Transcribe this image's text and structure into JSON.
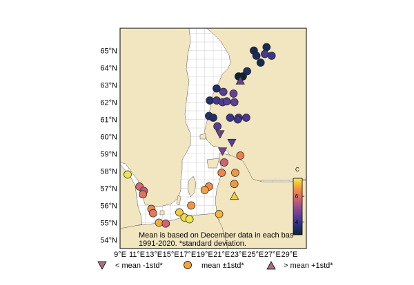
{
  "map": {
    "lat_labels": [
      "54°N",
      "55°N",
      "56°N",
      "57°N",
      "58°N",
      "59°N",
      "60°N",
      "61°N",
      "62°N",
      "63°N",
      "64°N",
      "65°N"
    ],
    "lon_labels": [
      "9°E",
      "11°E",
      "13°E",
      "15°E",
      "17°E",
      "19°E",
      "21°E",
      "23°E",
      "25°E",
      "27°E",
      "29°E"
    ],
    "lat_range": [
      53.5,
      66.3
    ],
    "lon_range": [
      9,
      31
    ],
    "land_color": "#f2e6c0",
    "sea_color": "#ffffff",
    "note_line1": "Mean is based on December data in each bas",
    "note_line2": "1991-2020. *standard deviation."
  },
  "colorbar": {
    "unit": "C",
    "ticks": [
      "6",
      "4"
    ],
    "tick_values": [
      6,
      4
    ],
    "range": [
      3,
      7.4
    ],
    "colormap": "thermal"
  },
  "legend": {
    "items": [
      {
        "label": "< mean -1std*",
        "marker": "triangle-down",
        "color": "#b06b86"
      },
      {
        "label": "mean ±1std*",
        "marker": "circle",
        "color": "#f5a33c"
      },
      {
        "label": "> mean +1std*",
        "marker": "triangle-up",
        "color": "#b06b86"
      }
    ]
  },
  "chart_data": {
    "type": "scatter",
    "title": "",
    "xlabel": "",
    "ylabel": "",
    "value_unit": "C",
    "points": [
      {
        "lon": 26.3,
        "lat": 65.2,
        "value": 3.3,
        "category": "mean"
      },
      {
        "lon": 24.8,
        "lat": 65.0,
        "value": 3.3,
        "category": "mean"
      },
      {
        "lon": 25.1,
        "lat": 64.7,
        "value": 3.4,
        "category": "mean"
      },
      {
        "lon": 26.1,
        "lat": 64.8,
        "value": 4.2,
        "category": "mean"
      },
      {
        "lon": 26.9,
        "lat": 64.7,
        "value": 4.0,
        "category": "mean"
      },
      {
        "lon": 25.6,
        "lat": 64.3,
        "value": 3.3,
        "category": "mean"
      },
      {
        "lon": 24.0,
        "lat": 63.8,
        "value": 3.5,
        "category": "mean"
      },
      {
        "lon": 23.0,
        "lat": 63.5,
        "value": 2.9,
        "category": "mean"
      },
      {
        "lon": 23.5,
        "lat": 63.5,
        "value": 3.0,
        "category": "mean"
      },
      {
        "lon": 23.2,
        "lat": 63.25,
        "value": 4.6,
        "category": "high"
      },
      {
        "lon": 20.4,
        "lat": 62.8,
        "value": 3.5,
        "category": "mean"
      },
      {
        "lon": 21.2,
        "lat": 62.6,
        "value": 4.4,
        "category": "mean"
      },
      {
        "lon": 22.4,
        "lat": 62.5,
        "value": 4.6,
        "category": "mean"
      },
      {
        "lon": 19.6,
        "lat": 62.1,
        "value": 3.6,
        "category": "mean"
      },
      {
        "lon": 20.4,
        "lat": 62.1,
        "value": 4.1,
        "category": "mean"
      },
      {
        "lon": 21.1,
        "lat": 62.0,
        "value": 4.3,
        "category": "mean"
      },
      {
        "lon": 21.6,
        "lat": 62.05,
        "value": 4.4,
        "category": "mean"
      },
      {
        "lon": 22.5,
        "lat": 62.0,
        "value": 4.5,
        "category": "mean"
      },
      {
        "lon": 19.5,
        "lat": 61.2,
        "value": 3.6,
        "category": "mean"
      },
      {
        "lon": 20.0,
        "lat": 61.1,
        "value": 3.5,
        "category": "mean"
      },
      {
        "lon": 22.0,
        "lat": 61.1,
        "value": 4.0,
        "category": "mean"
      },
      {
        "lon": 23.0,
        "lat": 61.1,
        "value": 4.3,
        "category": "mean"
      },
      {
        "lon": 23.9,
        "lat": 61.1,
        "value": 4.2,
        "category": "mean"
      },
      {
        "lon": 22.9,
        "lat": 61.0,
        "value": 4.0,
        "category": "mean"
      },
      {
        "lon": 20.5,
        "lat": 60.6,
        "value": 4.4,
        "category": "mean"
      },
      {
        "lon": 20.8,
        "lat": 60.15,
        "value": 4.6,
        "category": "low"
      },
      {
        "lon": 22.2,
        "lat": 59.65,
        "value": 4.4,
        "category": "low"
      },
      {
        "lon": 21.1,
        "lat": 59.15,
        "value": 4.8,
        "category": "low"
      },
      {
        "lon": 21.3,
        "lat": 58.5,
        "value": 5.8,
        "category": "mean"
      },
      {
        "lon": 23.2,
        "lat": 58.9,
        "value": 6.3,
        "category": "mean"
      },
      {
        "lon": 21.0,
        "lat": 57.9,
        "value": 6.4,
        "category": "mean"
      },
      {
        "lon": 22.6,
        "lat": 57.9,
        "value": 6.6,
        "category": "mean"
      },
      {
        "lon": 19.5,
        "lat": 57.1,
        "value": 6.5,
        "category": "mean"
      },
      {
        "lon": 19.0,
        "lat": 56.9,
        "value": 6.7,
        "category": "mean"
      },
      {
        "lon": 22.5,
        "lat": 57.25,
        "value": 6.6,
        "category": "mean"
      },
      {
        "lon": 22.5,
        "lat": 56.55,
        "value": 7.1,
        "category": "high"
      },
      {
        "lon": 17.4,
        "lat": 56.0,
        "value": 6.6,
        "category": "mean"
      },
      {
        "lon": 20.7,
        "lat": 55.5,
        "value": 6.9,
        "category": "mean"
      },
      {
        "lon": 9.9,
        "lat": 57.8,
        "value": 7.3,
        "category": "mean"
      },
      {
        "lon": 11.3,
        "lat": 57.1,
        "value": 5.9,
        "category": "mean"
      },
      {
        "lon": 11.8,
        "lat": 56.85,
        "value": 5.6,
        "category": "mean"
      },
      {
        "lon": 11.7,
        "lat": 56.65,
        "value": 6.1,
        "category": "mean"
      },
      {
        "lon": 12.7,
        "lat": 55.8,
        "value": 6.4,
        "category": "mean"
      },
      {
        "lon": 12.9,
        "lat": 55.55,
        "value": 6.2,
        "category": "mean"
      },
      {
        "lon": 13.6,
        "lat": 55.0,
        "value": 6.8,
        "category": "mean"
      },
      {
        "lon": 14.4,
        "lat": 54.95,
        "value": 5.8,
        "category": "mean"
      },
      {
        "lon": 16.0,
        "lat": 55.6,
        "value": 7.1,
        "category": "mean"
      },
      {
        "lon": 16.6,
        "lat": 55.3,
        "value": 7.2,
        "category": "mean"
      },
      {
        "lon": 17.2,
        "lat": 55.2,
        "value": 7.3,
        "category": "mean"
      }
    ]
  }
}
